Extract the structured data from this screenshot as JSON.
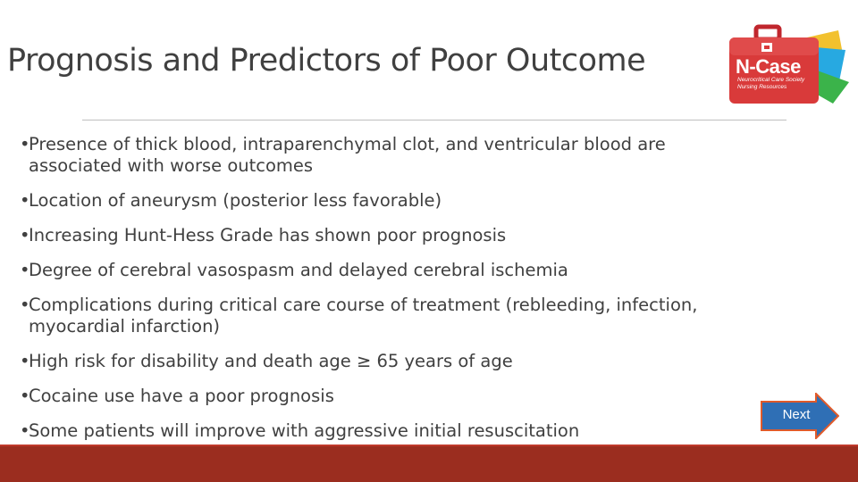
{
  "slide": {
    "title": "Prognosis and Predictors of Poor Outcome",
    "bullets": [
      {
        "line1": "Presence of thick blood, intraparenchymal clot, and ventricular blood are",
        "line2": "associated with worse outcomes"
      },
      {
        "line1": "Location of aneurysm (posterior less favorable)"
      },
      {
        "line1": "Increasing Hunt-Hess Grade has shown poor prognosis"
      },
      {
        "line1": "Degree of cerebral vasospasm and delayed cerebral ischemia"
      },
      {
        "line1": "Complications during critical care course of treatment (rebleeding, infection,",
        "line2": "myocardial infarction)"
      },
      {
        "line1": "High risk for disability and death age ≥ 65 years of age"
      },
      {
        "line1": "Cocaine use have a poor prognosis"
      },
      {
        "line1": "Some patients will improve with aggressive initial resuscitation"
      }
    ]
  },
  "logo": {
    "name": "N-Case",
    "subtitle": "Neurocritical Care Society Nursing Resources"
  },
  "navigation": {
    "next_label": "Next"
  },
  "colors": {
    "footer": "#9b2d1f",
    "logo_red": "#d93a3a",
    "button_blue": "#2f6fb5",
    "button_border": "#e05a2a"
  }
}
